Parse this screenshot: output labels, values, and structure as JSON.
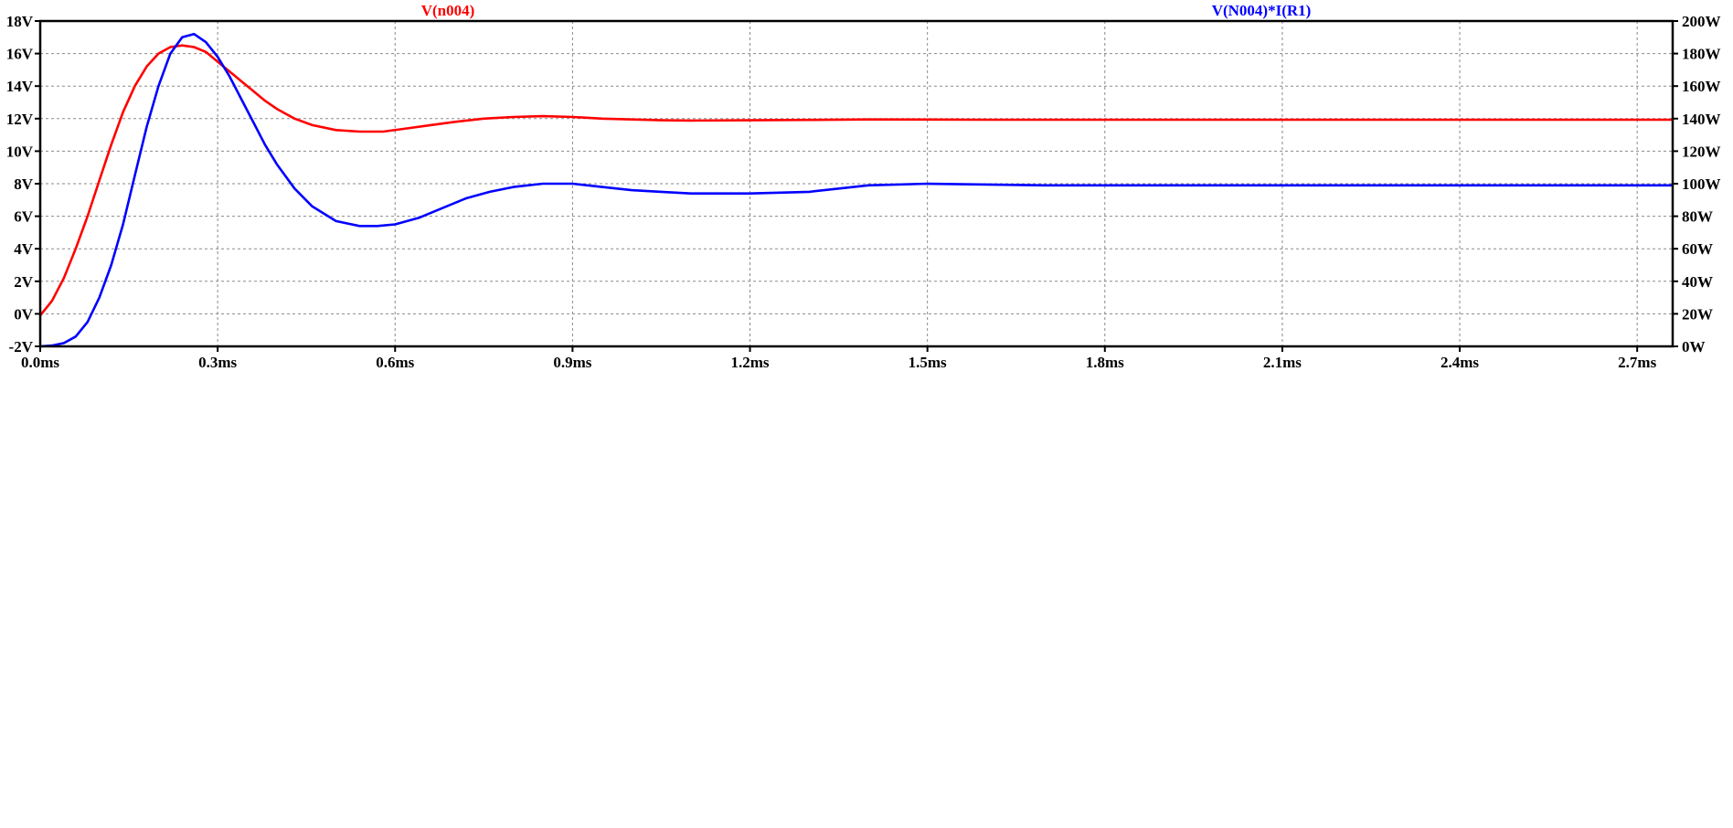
{
  "chart_data": {
    "type": "line",
    "x_ticks": [
      "0.0ms",
      "0.3ms",
      "0.6ms",
      "0.9ms",
      "1.2ms",
      "1.5ms",
      "1.8ms",
      "2.1ms",
      "2.4ms",
      "2.7ms"
    ],
    "y_left_ticks": [
      "-2V",
      "0V",
      "2V",
      "4V",
      "6V",
      "8V",
      "10V",
      "12V",
      "14V",
      "16V",
      "18V"
    ],
    "y_right_ticks": [
      "0W",
      "20W",
      "40W",
      "60W",
      "80W",
      "100W",
      "120W",
      "140W",
      "160W",
      "180W",
      "200W"
    ],
    "xlim": [
      0,
      2.76
    ],
    "ylim_left": [
      -2,
      18
    ],
    "ylim_right": [
      0,
      200
    ],
    "grid": true,
    "series": [
      {
        "name": "V(n004)",
        "color": "#ff0000",
        "axis": "left",
        "x": [
          0,
          0.02,
          0.04,
          0.06,
          0.08,
          0.1,
          0.12,
          0.14,
          0.16,
          0.18,
          0.2,
          0.22,
          0.24,
          0.26,
          0.28,
          0.3,
          0.32,
          0.34,
          0.36,
          0.38,
          0.4,
          0.43,
          0.46,
          0.5,
          0.54,
          0.58,
          0.62,
          0.66,
          0.7,
          0.75,
          0.8,
          0.85,
          0.9,
          0.95,
          1.0,
          1.05,
          1.1,
          1.2,
          1.3,
          1.4,
          1.6,
          1.8,
          2.0,
          2.2,
          2.4,
          2.6,
          2.76
        ],
        "y": [
          -0.1,
          0.8,
          2.2,
          4.0,
          6.0,
          8.2,
          10.4,
          12.4,
          14.0,
          15.2,
          16.0,
          16.4,
          16.5,
          16.4,
          16.1,
          15.5,
          14.9,
          14.3,
          13.7,
          13.1,
          12.6,
          12.0,
          11.6,
          11.3,
          11.2,
          11.2,
          11.4,
          11.6,
          11.8,
          12.0,
          12.1,
          12.15,
          12.1,
          12.0,
          11.95,
          11.9,
          11.88,
          11.9,
          11.92,
          11.95,
          11.93,
          11.93,
          11.93,
          11.93,
          11.93,
          11.93,
          11.93
        ]
      },
      {
        "name": "V(N004)*I(R1)",
        "color": "#0000ff",
        "axis": "right",
        "x": [
          0,
          0.02,
          0.04,
          0.06,
          0.08,
          0.1,
          0.12,
          0.14,
          0.16,
          0.18,
          0.2,
          0.22,
          0.24,
          0.26,
          0.28,
          0.3,
          0.32,
          0.34,
          0.36,
          0.38,
          0.4,
          0.43,
          0.46,
          0.5,
          0.54,
          0.57,
          0.6,
          0.64,
          0.68,
          0.72,
          0.76,
          0.8,
          0.85,
          0.9,
          0.95,
          1.0,
          1.05,
          1.1,
          1.2,
          1.3,
          1.4,
          1.5,
          1.7,
          1.9,
          2.1,
          2.3,
          2.5,
          2.76
        ],
        "y": [
          0,
          0.5,
          2,
          6,
          15,
          30,
          50,
          75,
          105,
          135,
          160,
          180,
          190,
          192,
          187,
          178,
          166,
          152,
          138,
          124,
          112,
          97,
          86,
          77,
          74,
          74,
          75,
          79,
          85,
          91,
          95,
          98,
          100,
          100,
          98,
          96,
          95,
          94,
          94,
          95,
          99,
          100,
          99,
          99,
          99,
          99,
          99,
          99
        ]
      }
    ]
  }
}
